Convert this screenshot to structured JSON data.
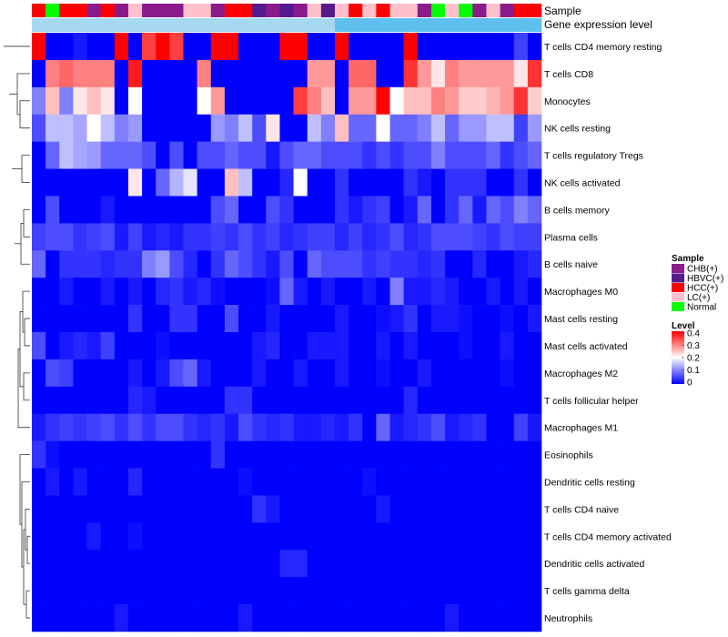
{
  "chart_data": {
    "type": "heatmap",
    "annotation_titles": [
      "Sample",
      "Gene expression level"
    ],
    "samples": [
      "HCC(+)",
      "Normal",
      "HCC(+)",
      "HCC(+)",
      "CHB(+)",
      "HCC(+)",
      "CHB(+)",
      "LC(+)",
      "CHB(+)",
      "CHB(+)",
      "CHB(+)",
      "LC(+)",
      "LC(+)",
      "CHB(+)",
      "HCC(+)",
      "HCC(+)",
      "HBVC(+)",
      "CHB(+)",
      "HBVC(+)",
      "CHB(+)",
      "LC(+)",
      "HBVC(+)",
      "LC(+)",
      "HCC(+)",
      "LC(+)",
      "HCC(+)",
      "LC(+)",
      "LC(+)",
      "CHB(+)",
      "Normal",
      "LC(+)",
      "Normal",
      "CHB(+)",
      "LC(+)",
      "CHB(+)",
      "HCC(+)",
      "HCC(+)"
    ],
    "gene_expression_level_band": [
      "#a6d8f0",
      "#a6d8f0",
      "#a6d8f0",
      "#a6d8f0",
      "#a6d8f0",
      "#a6d8f0",
      "#a6d8f0",
      "#a6d8f0",
      "#a6d8f0",
      "#a6d8f0",
      "#a6d8f0",
      "#a6d8f0",
      "#a6d8f0",
      "#a6d8f0",
      "#a6d8f0",
      "#a6d8f0",
      "#a6d8f0",
      "#a6d8f0",
      "#a6d8f0",
      "#a6d8f0",
      "#a6d8f0",
      "#a6d8f0",
      "#5ec0ee",
      "#5ec0ee",
      "#5ec0ee",
      "#5ec0ee",
      "#5ec0ee",
      "#5ec0ee",
      "#5ec0ee",
      "#5ec0ee",
      "#5ec0ee",
      "#5ec0ee",
      "#5ec0ee",
      "#5ec0ee",
      "#5ec0ee",
      "#5ec0ee",
      "#5ec0ee"
    ],
    "rows": [
      "T cells CD4 memory resting",
      "T cells CD8",
      "Monocytes",
      "NK cells resting",
      "T cells regulatory  Tregs",
      "NK cells activated",
      "B cells memory",
      "Plasma cells",
      "B cells naive",
      "Macrophages M0",
      "Mast cells resting",
      "Mast cells activated",
      "Macrophages M2",
      "T cells follicular helper",
      "Macrophages M1",
      "Eosinophils",
      "Dendritic cells resting",
      "T cells CD4 naive",
      "T cells CD4 memory activated",
      "Dendritic cells activated",
      "T cells gamma delta",
      "Neutrophils"
    ],
    "values": [
      [
        0.4,
        0,
        0,
        0.02,
        0,
        0,
        0.4,
        0,
        0.35,
        0.4,
        0.35,
        0,
        0,
        0.4,
        0.4,
        0,
        0,
        0,
        0.4,
        0.4,
        0,
        0,
        0.4,
        0,
        0,
        0,
        0,
        0.4,
        0,
        0,
        0,
        0,
        0,
        0,
        0,
        0.05,
        0
      ],
      [
        0,
        0.3,
        0.32,
        0.3,
        0.3,
        0.3,
        0,
        0.38,
        0,
        0,
        0,
        0,
        0.3,
        0,
        0,
        0,
        0,
        0,
        0,
        0,
        0.28,
        0.28,
        0,
        0.32,
        0.32,
        0,
        0,
        0.36,
        0.28,
        0.22,
        0.3,
        0.28,
        0.28,
        0.28,
        0.28,
        0.22,
        0.36
      ],
      [
        0.1,
        0.25,
        0.1,
        0.22,
        0.25,
        0.22,
        0,
        0.2,
        0,
        0,
        0,
        0,
        0.2,
        0.28,
        0,
        0,
        0,
        0,
        0,
        0.35,
        0.3,
        0.25,
        0,
        0.28,
        0.28,
        0.4,
        0.2,
        0.25,
        0.25,
        0.3,
        0.28,
        0.24,
        0.24,
        0.26,
        0.28,
        0.36,
        0.24
      ],
      [
        0.06,
        0.15,
        0.15,
        0.13,
        0.2,
        0.15,
        0.1,
        0.12,
        0,
        0,
        0,
        0,
        0,
        0.12,
        0.1,
        0.15,
        0.06,
        0.22,
        0,
        0,
        0.15,
        0.1,
        0.25,
        0.08,
        0.08,
        0.2,
        0.08,
        0.08,
        0.1,
        0.15,
        0.08,
        0.12,
        0.12,
        0.15,
        0.15,
        0.05,
        0.12
      ],
      [
        0,
        0.08,
        0.15,
        0.13,
        0.12,
        0.08,
        0.08,
        0.08,
        0.06,
        0,
        0.06,
        0,
        0.06,
        0.06,
        0.08,
        0.06,
        0.06,
        0.02,
        0.06,
        0.08,
        0.08,
        0.06,
        0.06,
        0.06,
        0.04,
        0.06,
        0.04,
        0.06,
        0.06,
        0.1,
        0.06,
        0.06,
        0.06,
        0.08,
        0.04,
        0.06,
        0.08
      ],
      [
        0,
        0,
        0,
        0,
        0,
        0,
        0,
        0.22,
        0,
        0.08,
        0.14,
        0.18,
        0,
        0,
        0.25,
        0.15,
        0,
        0,
        0.03,
        0.2,
        0,
        0,
        0.04,
        0,
        0,
        0,
        0,
        0.04,
        0.02,
        0,
        0.04,
        0.04,
        0.04,
        0,
        0,
        0.04,
        0
      ],
      [
        0,
        0.06,
        0,
        0,
        0,
        0.02,
        0,
        0,
        0,
        0,
        0,
        0,
        0,
        0.06,
        0.08,
        0,
        0,
        0.06,
        0.04,
        0,
        0,
        0,
        0.04,
        0.02,
        0.04,
        0.05,
        0,
        0.02,
        0.08,
        0,
        0.04,
        0.08,
        0.02,
        0.08,
        0.06,
        0.1,
        0.08
      ],
      [
        0.05,
        0.06,
        0.06,
        0.04,
        0.05,
        0.06,
        0.02,
        0.05,
        0.02,
        0.03,
        0.02,
        0.04,
        0.04,
        0.05,
        0.04,
        0.06,
        0.04,
        0.05,
        0.03,
        0.04,
        0.05,
        0.05,
        0.03,
        0.05,
        0.03,
        0.04,
        0.06,
        0.03,
        0.04,
        0.06,
        0.06,
        0.06,
        0.05,
        0.04,
        0.06,
        0.05,
        0.05
      ],
      [
        0.08,
        0,
        0.04,
        0.04,
        0.04,
        0.03,
        0.04,
        0.04,
        0.1,
        0.12,
        0.06,
        0.03,
        0,
        0.04,
        0.08,
        0.06,
        0.04,
        0.02,
        0.06,
        0,
        0.08,
        0.06,
        0.06,
        0.06,
        0.04,
        0.05,
        0.04,
        0.04,
        0.03,
        0.04,
        0,
        0,
        0.03,
        0,
        0,
        0.02,
        0.03
      ],
      [
        0,
        0,
        0.02,
        0,
        0,
        0.02,
        0,
        0.02,
        0,
        0.03,
        0.04,
        0.02,
        0.03,
        0.01,
        0,
        0,
        0,
        0.01,
        0.08,
        0.02,
        0,
        0.02,
        0,
        0,
        0.02,
        0,
        0.1,
        0.02,
        0.02,
        0.03,
        0.02,
        0,
        0,
        0.02,
        0,
        0.02,
        0
      ],
      [
        0,
        0,
        0,
        0,
        0,
        0,
        0,
        0.04,
        0,
        0,
        0.04,
        0.04,
        0,
        0,
        0.06,
        0,
        0,
        0.02,
        0,
        0,
        0,
        0,
        0.02,
        0,
        0,
        0.01,
        0.02,
        0.04,
        0,
        0.02,
        0.02,
        0.01,
        0,
        0,
        0.01,
        0,
        0.02
      ],
      [
        0.06,
        0,
        0.02,
        0.03,
        0.02,
        0.05,
        0,
        0,
        0,
        0.01,
        0,
        0,
        0,
        0,
        0,
        0,
        0.02,
        0.03,
        0,
        0,
        0.02,
        0.02,
        0.02,
        0,
        0,
        0.02,
        0,
        0.02,
        0,
        0,
        0,
        0.01,
        0,
        0,
        0.02,
        0,
        0
      ],
      [
        0,
        0.06,
        0.05,
        0,
        0,
        0,
        0,
        0.02,
        0,
        0.02,
        0.06,
        0.08,
        0.02,
        0,
        0,
        0,
        0.02,
        0,
        0,
        0.02,
        0,
        0,
        0.02,
        0,
        0,
        0.01,
        0,
        0,
        0.02,
        0,
        0,
        0,
        0,
        0,
        0.01,
        0,
        0
      ],
      [
        0,
        0,
        0,
        0,
        0,
        0,
        0,
        0.03,
        0.02,
        0,
        0,
        0,
        0,
        0,
        0.04,
        0.04,
        0,
        0,
        0,
        0,
        0,
        0,
        0,
        0,
        0,
        0,
        0,
        0.03,
        0,
        0,
        0,
        0,
        0,
        0,
        0,
        0,
        0
      ],
      [
        0.02,
        0.04,
        0.05,
        0.04,
        0.05,
        0.06,
        0.04,
        0.06,
        0.04,
        0.06,
        0.06,
        0.04,
        0.03,
        0.04,
        0.02,
        0.06,
        0.04,
        0.03,
        0.04,
        0.02,
        0.02,
        0.03,
        0.02,
        0.04,
        0,
        0.08,
        0.02,
        0.03,
        0.04,
        0.06,
        0.02,
        0.03,
        0.04,
        0,
        0,
        0.05,
        0.02
      ],
      [
        0.04,
        0.01,
        0,
        0,
        0,
        0,
        0,
        0,
        0,
        0,
        0,
        0,
        0,
        0.04,
        0,
        0,
        0,
        0,
        0,
        0,
        0,
        0,
        0,
        0,
        0,
        0,
        0,
        0,
        0,
        0,
        0,
        0,
        0,
        0,
        0,
        0,
        0
      ],
      [
        0,
        0.02,
        0,
        0.02,
        0,
        0,
        0,
        0.03,
        0,
        0,
        0,
        0,
        0,
        0,
        0,
        0.01,
        0,
        0,
        0,
        0,
        0,
        0,
        0,
        0,
        0.01,
        0,
        0,
        0,
        0,
        0,
        0,
        0,
        0,
        0,
        0,
        0,
        0
      ],
      [
        0,
        0,
        0,
        0,
        0,
        0,
        0,
        0,
        0,
        0,
        0,
        0,
        0,
        0,
        0,
        0,
        0.04,
        0.02,
        0,
        0,
        0,
        0,
        0,
        0,
        0,
        0.02,
        0,
        0,
        0,
        0,
        0,
        0,
        0,
        0,
        0,
        0,
        0
      ],
      [
        0,
        0,
        0,
        0,
        0.02,
        0,
        0,
        0.01,
        0,
        0,
        0,
        0,
        0,
        0,
        0,
        0,
        0,
        0,
        0,
        0,
        0,
        0,
        0,
        0,
        0,
        0,
        0,
        0,
        0,
        0,
        0,
        0,
        0,
        0,
        0,
        0,
        0
      ],
      [
        0,
        0,
        0,
        0,
        0,
        0,
        0,
        0,
        0,
        0,
        0,
        0,
        0,
        0,
        0,
        0,
        0,
        0,
        0.03,
        0.03,
        0,
        0,
        0,
        0,
        0,
        0,
        0,
        0,
        0,
        0,
        0,
        0,
        0,
        0,
        0,
        0,
        0
      ],
      [
        0,
        0,
        0,
        0,
        0,
        0,
        0,
        0,
        0,
        0,
        0,
        0,
        0,
        0,
        0,
        0,
        0,
        0,
        0,
        0,
        0,
        0,
        0,
        0,
        0,
        0,
        0,
        0,
        0,
        0,
        0,
        0,
        0,
        0,
        0,
        0,
        0
      ],
      [
        0,
        0,
        0,
        0,
        0,
        0,
        0.02,
        0,
        0,
        0,
        0,
        0,
        0,
        0,
        0,
        0.02,
        0,
        0,
        0,
        0,
        0,
        0,
        0,
        0,
        0,
        0,
        0,
        0,
        0,
        0,
        0.02,
        0,
        0,
        0,
        0,
        0,
        0
      ]
    ],
    "color_scale": {
      "min": 0,
      "max": 0.4,
      "low": "#0000ff",
      "mid": "#ffffff",
      "high": "#ff0000"
    },
    "legend_sample": {
      "title": "Sample",
      "items": [
        {
          "label": "CHB(+)",
          "color": "#8b1a8b"
        },
        {
          "label": "HBVC(+)",
          "color": "#551a8b"
        },
        {
          "label": "HCC(+)",
          "color": "#ff0000"
        },
        {
          "label": "LC(+)",
          "color": "#ffc0cb"
        },
        {
          "label": "Normal",
          "color": "#00ff00"
        }
      ]
    },
    "legend_level": {
      "title": "Level",
      "ticks": [
        "0.4",
        "0.3",
        "0.2",
        "0.1",
        "0"
      ]
    }
  }
}
